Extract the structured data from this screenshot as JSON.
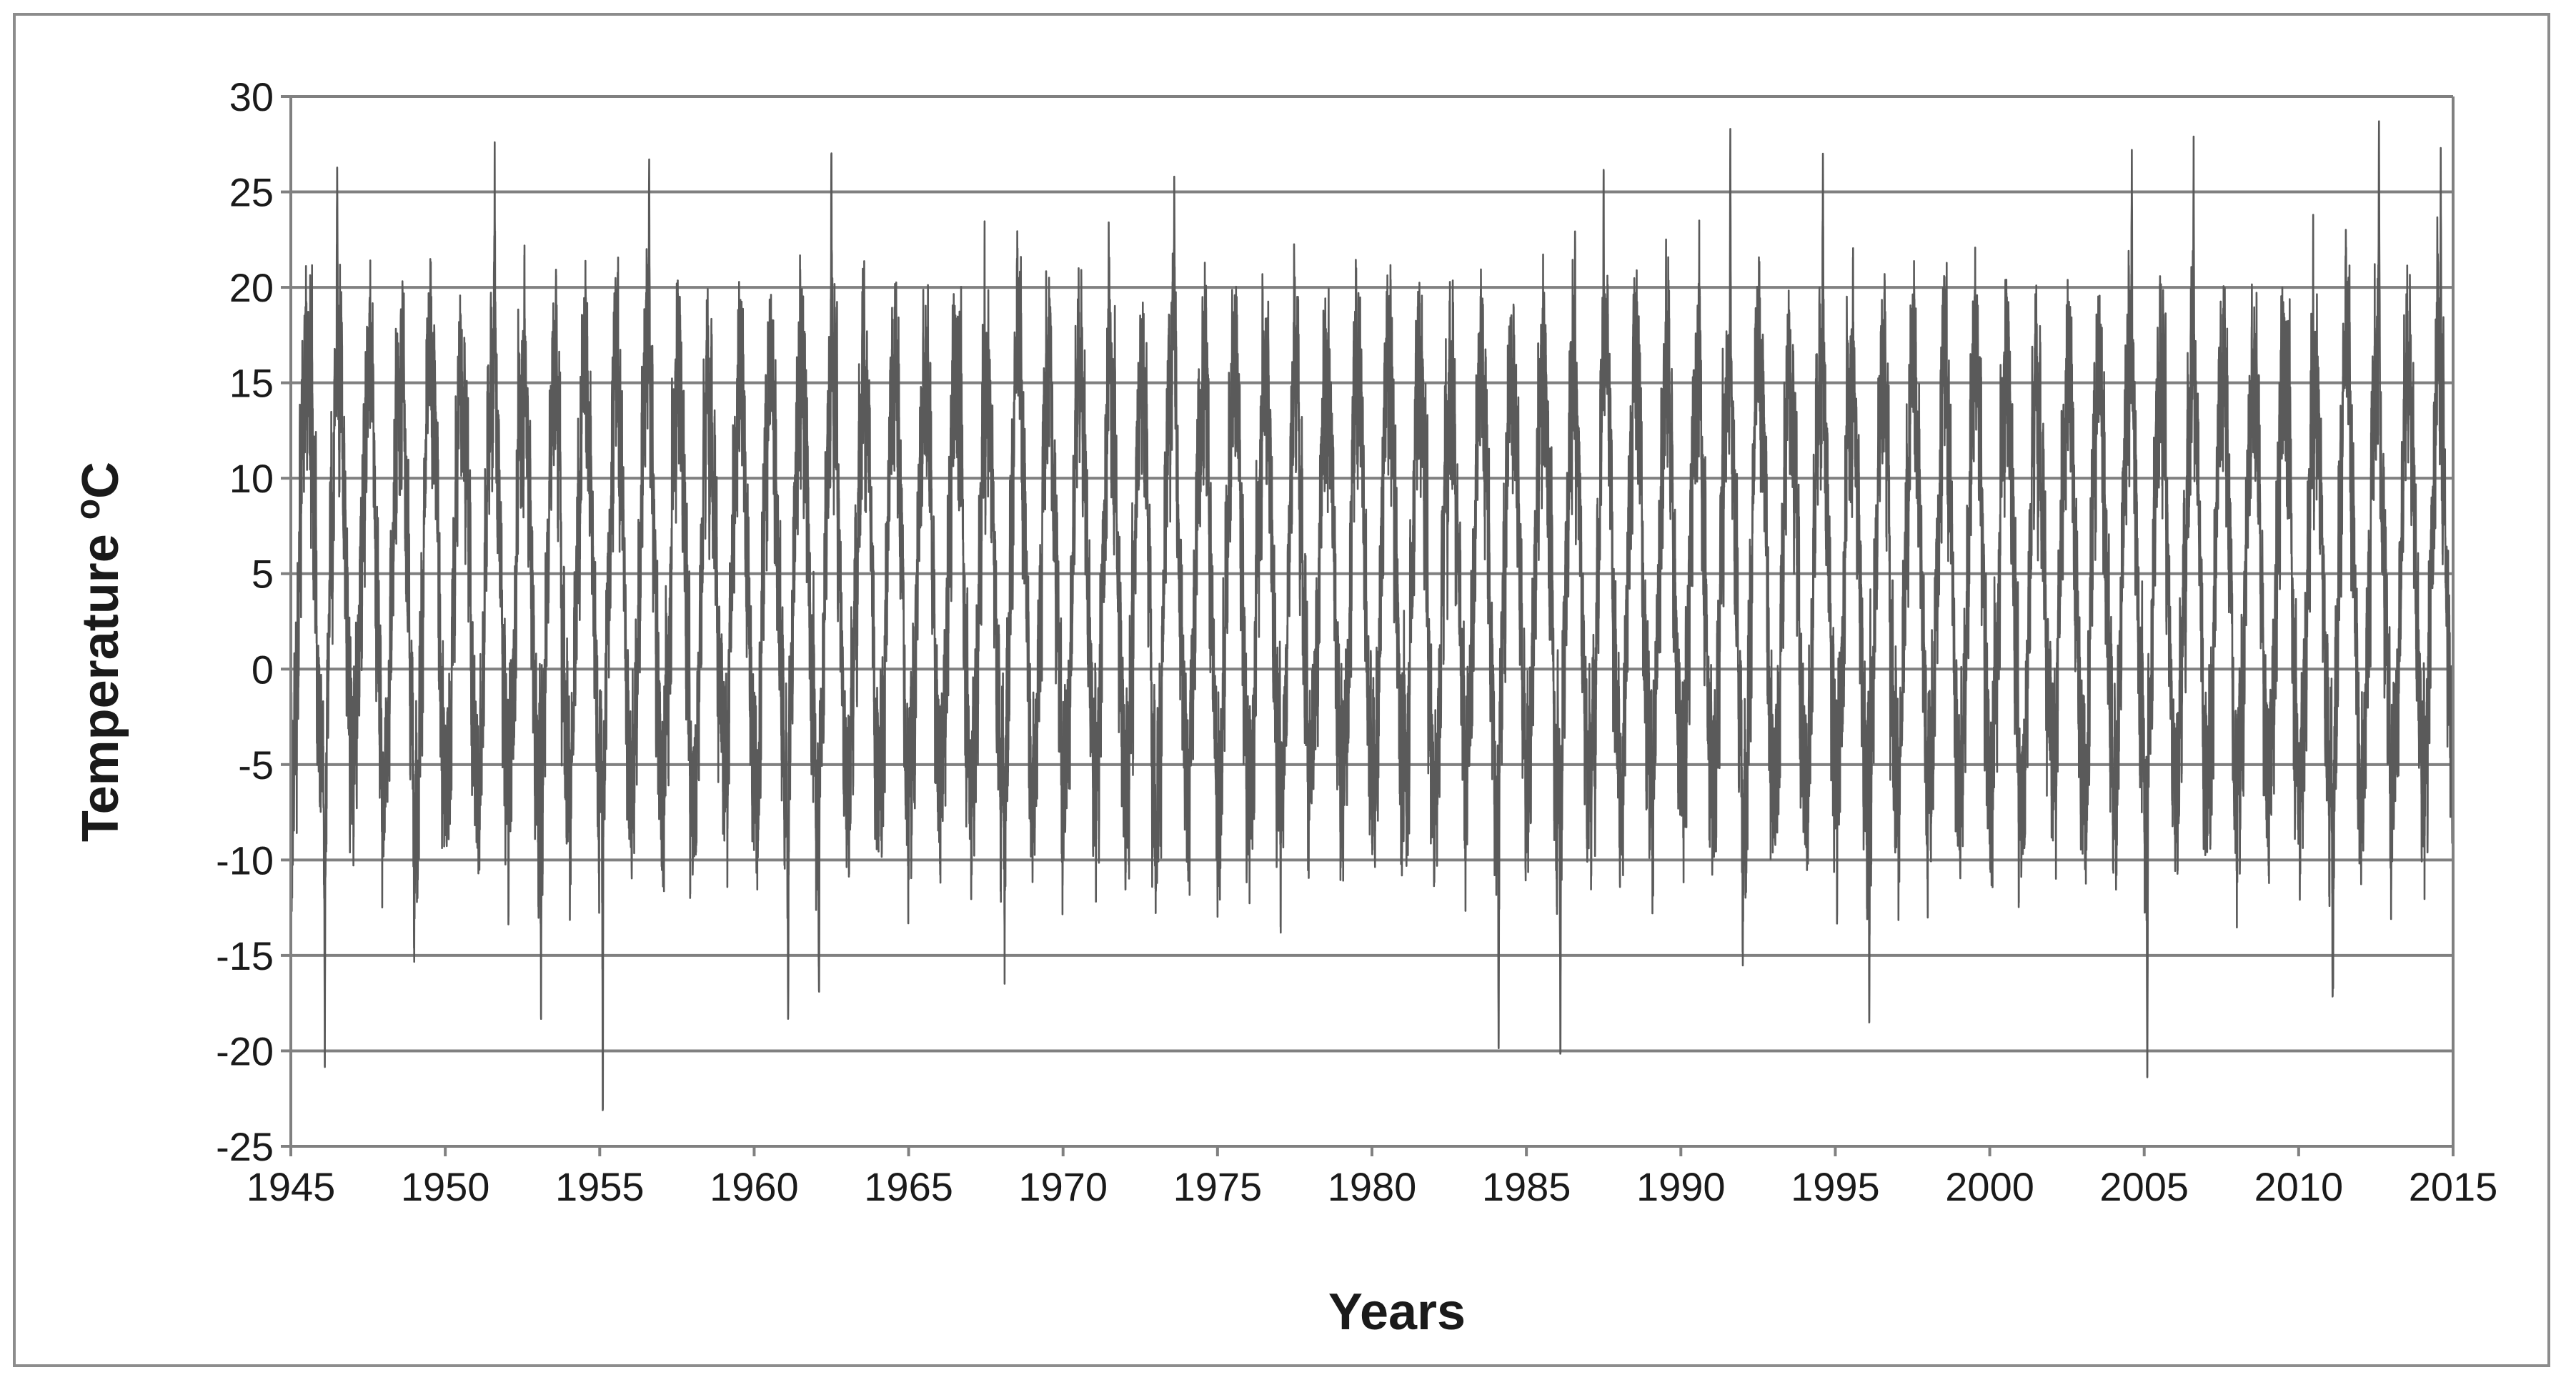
{
  "chart_data": {
    "type": "line",
    "title": "",
    "xlabel": "Years",
    "ylabel": "Temperature  °C",
    "ylabel_parts": {
      "main": "Temperature  ",
      "superscript": "o",
      "unit": "C"
    },
    "xlim": [
      1945,
      2015
    ],
    "ylim": [
      -25,
      30
    ],
    "x_ticks": [
      1945,
      1950,
      1955,
      1960,
      1965,
      1970,
      1975,
      1980,
      1985,
      1990,
      1995,
      2000,
      2005,
      2010,
      2015
    ],
    "y_ticks": [
      -25,
      -20,
      -15,
      -10,
      -5,
      0,
      5,
      10,
      15,
      20,
      25,
      30
    ],
    "grid": "horizontal",
    "legend": "none",
    "line_color": "#5a5a5a",
    "grid_color": "#808080",
    "series": [
      {
        "sampling": "daily",
        "annual_mean": 5,
        "summer_extremes": [
          {
            "x": 1946.5,
            "y": 27.0
          },
          {
            "x": 1951.6,
            "y": 27.6
          },
          {
            "x": 1956.6,
            "y": 26.7
          },
          {
            "x": 1962.5,
            "y": 27.5
          },
          {
            "x": 1973.6,
            "y": 25.8
          },
          {
            "x": 1987.5,
            "y": 27.1
          },
          {
            "x": 1991.6,
            "y": 28.3
          },
          {
            "x": 1994.6,
            "y": 27.0
          },
          {
            "x": 2004.6,
            "y": 27.2
          },
          {
            "x": 2006.6,
            "y": 27.9
          },
          {
            "x": 2012.6,
            "y": 28.7
          },
          {
            "x": 2014.6,
            "y": 27.3
          }
        ],
        "winter_extremes": [
          {
            "x": 1946.1,
            "y": -21.7
          },
          {
            "x": 1953.1,
            "y": -19.0
          },
          {
            "x": 1955.1,
            "y": -24.2
          },
          {
            "x": 1961.1,
            "y": -19.2
          },
          {
            "x": 1962.1,
            "y": -17.4
          },
          {
            "x": 1984.1,
            "y": -20.6
          },
          {
            "x": 1986.1,
            "y": -21.0
          },
          {
            "x": 1996.1,
            "y": -19.5
          },
          {
            "x": 2005.1,
            "y": -22.0
          },
          {
            "x": 2011.1,
            "y": -18.0
          }
        ]
      }
    ]
  }
}
